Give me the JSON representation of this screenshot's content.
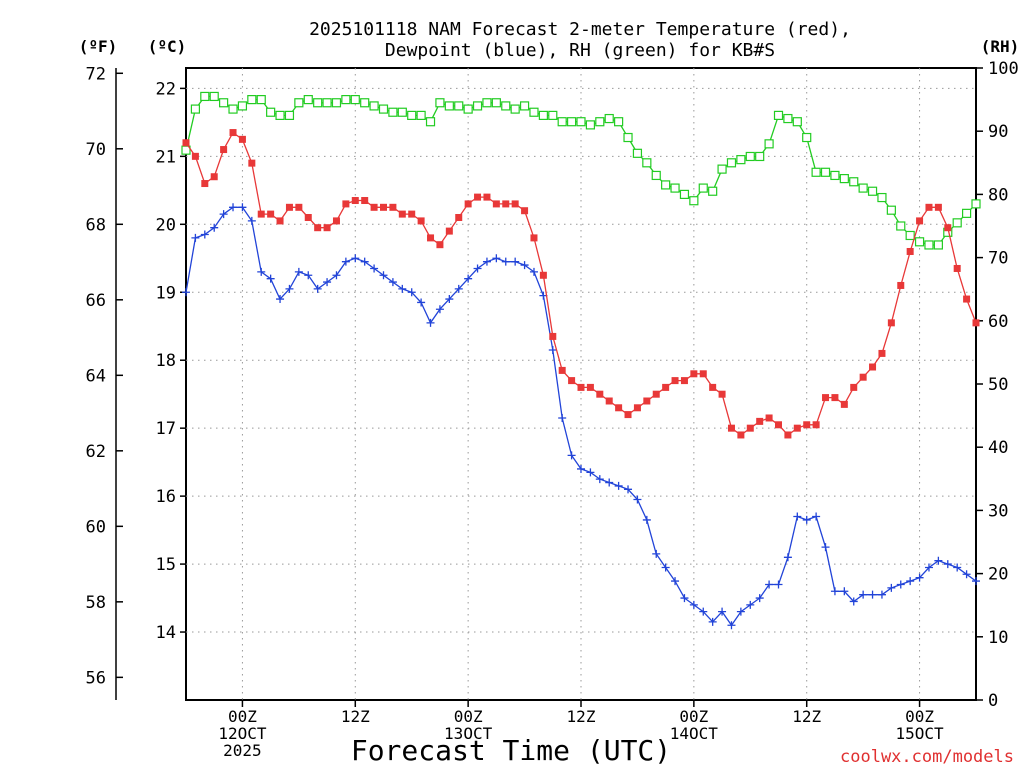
{
  "chart_data": {
    "type": "line",
    "title_lines": [
      "2025101118 NAM Forecast 2-meter Temperature (red),",
      "Dewpoint (blue), RH (green) for KB#S"
    ],
    "units": {
      "fahrenheit": "(ºF)",
      "celsius": "(ºC)",
      "rh": "(RH)"
    },
    "xlabel": "Forecast Time (UTC)",
    "credit": "coolwx.com/models",
    "x_range_hours": [
      0,
      84
    ],
    "x_ticks": [
      {
        "hour": 6,
        "lines": [
          "00Z",
          "12OCT",
          "2025"
        ]
      },
      {
        "hour": 18,
        "lines": [
          "12Z"
        ]
      },
      {
        "hour": 30,
        "lines": [
          "00Z",
          "13OCT"
        ]
      },
      {
        "hour": 42,
        "lines": [
          "12Z"
        ]
      },
      {
        "hour": 54,
        "lines": [
          "00Z",
          "14OCT"
        ]
      },
      {
        "hour": 66,
        "lines": [
          "12Z"
        ]
      },
      {
        "hour": 78,
        "lines": [
          "00Z",
          "15OCT"
        ]
      }
    ],
    "y_left_c": {
      "range": [
        13.0,
        22.3
      ],
      "ticks": [
        14,
        15,
        16,
        17,
        18,
        19,
        20,
        21,
        22
      ],
      "tick_labels": [
        "14",
        "15",
        "16",
        "17",
        "18",
        "19",
        "20",
        "21",
        "22"
      ]
    },
    "y_left_f": {
      "ticks": [
        56,
        58,
        60,
        62,
        64,
        66,
        68,
        70,
        72
      ],
      "tick_labels": [
        "56",
        "58",
        "60",
        "62",
        "64",
        "66",
        "68",
        "70",
        "72"
      ]
    },
    "y_right_rh": {
      "range": [
        0,
        100
      ],
      "ticks": [
        0,
        10,
        20,
        30,
        40,
        50,
        60,
        70,
        80,
        90,
        100
      ],
      "tick_labels": [
        "0",
        "10",
        "20",
        "30",
        "40",
        "50",
        "60",
        "70",
        "80",
        "90",
        "100"
      ]
    },
    "grid": true,
    "series": [
      {
        "key": "temperature",
        "color": "#e83838",
        "marker": "filled-square",
        "axis": "celsius",
        "hours": [
          0,
          1,
          2,
          3,
          4,
          5,
          6,
          7,
          8,
          9,
          10,
          11,
          12,
          13,
          14,
          15,
          16,
          17,
          18,
          19,
          20,
          21,
          22,
          23,
          24,
          25,
          26,
          27,
          28,
          29,
          30,
          31,
          32,
          33,
          34,
          35,
          36,
          37,
          38,
          39,
          40,
          41,
          42,
          43,
          44,
          45,
          46,
          47,
          48,
          49,
          50,
          51,
          52,
          53,
          54,
          55,
          56,
          57,
          58,
          59,
          60,
          61,
          62,
          63,
          64,
          65,
          66,
          67,
          68,
          69,
          70,
          71,
          72,
          73,
          74,
          75,
          76,
          77,
          78,
          79,
          80,
          81,
          82,
          83,
          84
        ],
        "values": [
          21.2,
          21.0,
          20.6,
          20.7,
          21.1,
          21.35,
          21.25,
          20.9,
          20.15,
          20.15,
          20.05,
          20.25,
          20.25,
          20.1,
          19.95,
          19.95,
          20.05,
          20.3,
          20.35,
          20.35,
          20.25,
          20.25,
          20.25,
          20.15,
          20.15,
          20.05,
          19.8,
          19.7,
          19.9,
          20.1,
          20.3,
          20.4,
          20.4,
          20.3,
          20.3,
          20.3,
          20.2,
          19.8,
          19.25,
          18.35,
          17.85,
          17.7,
          17.6,
          17.6,
          17.5,
          17.4,
          17.3,
          17.2,
          17.3,
          17.4,
          17.5,
          17.6,
          17.7,
          17.7,
          17.8,
          17.8,
          17.6,
          17.5,
          17.0,
          16.9,
          17.0,
          17.1,
          17.15,
          17.05,
          16.9,
          17.0,
          17.05,
          17.05,
          17.45,
          17.45,
          17.35,
          17.6,
          17.75,
          17.9,
          18.1,
          18.55,
          19.1,
          19.6,
          20.05,
          20.25,
          20.25,
          19.95,
          19.35,
          18.9,
          18.55
        ]
      },
      {
        "key": "dewpoint",
        "color": "#2244d8",
        "marker": "plus",
        "axis": "celsius",
        "hours": [
          0,
          1,
          2,
          3,
          4,
          5,
          6,
          7,
          8,
          9,
          10,
          11,
          12,
          13,
          14,
          15,
          16,
          17,
          18,
          19,
          20,
          21,
          22,
          23,
          24,
          25,
          26,
          27,
          28,
          29,
          30,
          31,
          32,
          33,
          34,
          35,
          36,
          37,
          38,
          39,
          40,
          41,
          42,
          43,
          44,
          45,
          46,
          47,
          48,
          49,
          50,
          51,
          52,
          53,
          54,
          55,
          56,
          57,
          58,
          59,
          60,
          61,
          62,
          63,
          64,
          65,
          66,
          67,
          68,
          69,
          70,
          71,
          72,
          73,
          74,
          75,
          76,
          77,
          78,
          79,
          80,
          81,
          82,
          83,
          84
        ],
        "values": [
          19.0,
          19.8,
          19.85,
          19.95,
          20.15,
          20.25,
          20.25,
          20.05,
          19.3,
          19.2,
          18.9,
          19.05,
          19.3,
          19.25,
          19.05,
          19.15,
          19.25,
          19.45,
          19.5,
          19.45,
          19.35,
          19.25,
          19.15,
          19.05,
          19.0,
          18.85,
          18.55,
          18.75,
          18.9,
          19.05,
          19.2,
          19.35,
          19.45,
          19.5,
          19.45,
          19.45,
          19.4,
          19.3,
          18.95,
          18.15,
          17.15,
          16.6,
          16.4,
          16.35,
          16.25,
          16.2,
          16.15,
          16.1,
          15.95,
          15.65,
          15.15,
          14.95,
          14.75,
          14.5,
          14.4,
          14.3,
          14.15,
          14.3,
          14.1,
          14.3,
          14.4,
          14.5,
          14.7,
          14.7,
          15.1,
          15.7,
          15.65,
          15.7,
          15.25,
          14.6,
          14.6,
          14.45,
          14.55,
          14.55,
          14.55,
          14.65,
          14.7,
          14.75,
          14.8,
          14.95,
          15.05,
          15.0,
          14.95,
          14.85,
          14.75
        ]
      },
      {
        "key": "rh",
        "color": "#22cc22",
        "marker": "open-square",
        "axis": "rh",
        "hours": [
          0,
          1,
          2,
          3,
          4,
          5,
          6,
          7,
          8,
          9,
          10,
          11,
          12,
          13,
          14,
          15,
          16,
          17,
          18,
          19,
          20,
          21,
          22,
          23,
          24,
          25,
          26,
          27,
          28,
          29,
          30,
          31,
          32,
          33,
          34,
          35,
          36,
          37,
          38,
          39,
          40,
          41,
          42,
          43,
          44,
          45,
          46,
          47,
          48,
          49,
          50,
          51,
          52,
          53,
          54,
          55,
          56,
          57,
          58,
          59,
          60,
          61,
          62,
          63,
          64,
          65,
          66,
          67,
          68,
          69,
          70,
          71,
          72,
          73,
          74,
          75,
          76,
          77,
          78,
          79,
          80,
          81,
          82,
          83,
          84
        ],
        "values": [
          87,
          93.5,
          95.5,
          95.5,
          94.5,
          93.5,
          94,
          95,
          95,
          93,
          92.5,
          92.5,
          94.5,
          95,
          94.5,
          94.5,
          94.5,
          95,
          95,
          94.5,
          94,
          93.5,
          93,
          93,
          92.5,
          92.5,
          91.5,
          94.5,
          94,
          94,
          93.5,
          94,
          94.5,
          94.5,
          94,
          93.5,
          94,
          93,
          92.5,
          92.5,
          91.5,
          91.5,
          91.5,
          91,
          91.5,
          92,
          91.5,
          89,
          86.5,
          85,
          83,
          81.5,
          81,
          80,
          79,
          81,
          80.5,
          84,
          85,
          85.5,
          86,
          86,
          88,
          92.5,
          92,
          91.5,
          89,
          83.5,
          83.5,
          83,
          82.5,
          82,
          81,
          80.5,
          79.5,
          77.5,
          75,
          73.5,
          72.5,
          72,
          72,
          74,
          75.5,
          77,
          78.5
        ]
      }
    ]
  }
}
